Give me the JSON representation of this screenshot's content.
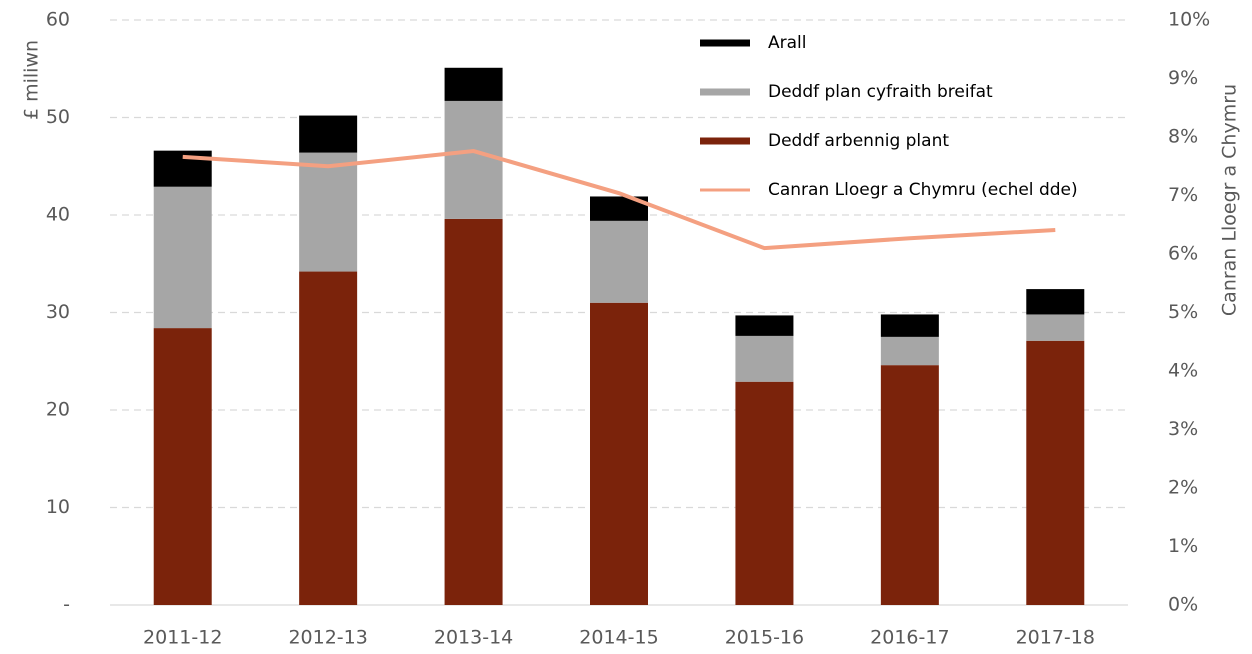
{
  "chart_data": {
    "type": "bar",
    "categories": [
      "2011-12",
      "2012-13",
      "2013-14",
      "2014-15",
      "2015-16",
      "2016-17",
      "2017-18"
    ],
    "series": [
      {
        "name": "Deddf arbennig plant",
        "color": "#7b230b",
        "values": [
          28.4,
          34.2,
          39.6,
          31.0,
          22.9,
          24.6,
          27.1
        ]
      },
      {
        "name": "Deddf plan cyfraith breifat",
        "color": "#a6a6a6",
        "values": [
          14.5,
          12.2,
          12.1,
          8.4,
          4.7,
          2.9,
          2.7
        ]
      },
      {
        "name": "Arall",
        "color": "#000000",
        "values": [
          3.7,
          3.8,
          3.4,
          2.5,
          2.1,
          2.3,
          2.6
        ]
      },
      {
        "name": "Canran Lloegr a Chymru (echel dde)",
        "color": "#f4a081",
        "type": "line",
        "axis": "y2",
        "values": [
          7.66,
          7.5,
          7.76,
          7.04,
          6.1,
          6.27,
          6.41
        ]
      }
    ],
    "stacked": true,
    "ylabel": "£ miliwn",
    "y2label": "Canran Lloegr a Chymru",
    "ylim": [
      0,
      60
    ],
    "yticks": [
      {
        "value": 0,
        "label": "-"
      },
      10,
      20,
      30,
      40,
      50,
      60
    ],
    "y2lim": [
      0,
      10
    ],
    "y2ticks": [
      {
        "value": 0,
        "label": "0%"
      },
      {
        "value": 1,
        "label": "1%"
      },
      {
        "value": 2,
        "label": "2%"
      },
      {
        "value": 3,
        "label": "3%"
      },
      {
        "value": 4,
        "label": "4%"
      },
      {
        "value": 5,
        "label": "5%"
      },
      {
        "value": 6,
        "label": "6%"
      },
      {
        "value": 7,
        "label": "7%"
      },
      {
        "value": 8,
        "label": "8%"
      },
      {
        "value": 9,
        "label": "9%"
      },
      {
        "value": 10,
        "label": "10%"
      }
    ],
    "grid": true,
    "legend": "top-right"
  }
}
